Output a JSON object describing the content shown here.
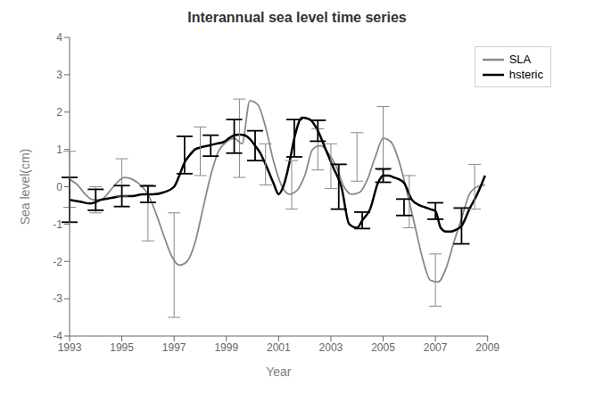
{
  "chart_data": {
    "type": "line",
    "title": "Interannual sea level time series",
    "x_label": "Year",
    "y_label": "Sea level(cm)",
    "xlim": [
      1993,
      2009
    ],
    "ylim": [
      -4,
      4
    ],
    "xticks": [
      1993,
      1995,
      1997,
      1999,
      2001,
      2003,
      2005,
      2007,
      2009
    ],
    "yticks": [
      -4,
      -3,
      -2,
      -1,
      0,
      1,
      2,
      3,
      4
    ],
    "grid": false,
    "legend": "upper right",
    "series": [
      {
        "name": "SLA",
        "color": "#888888",
        "x": [
          1993.0,
          1993.3,
          1993.6,
          1993.9,
          1994.2,
          1994.5,
          1994.8,
          1995.1,
          1995.4,
          1995.7,
          1996.0,
          1996.3,
          1996.6,
          1996.9,
          1997.2,
          1997.5,
          1997.8,
          1998.1,
          1998.4,
          1998.7,
          1999.0,
          1999.3,
          1999.6,
          1999.9,
          2000.2,
          2000.5,
          2000.8,
          2001.1,
          2001.4,
          2001.7,
          2002.0,
          2002.3,
          2002.6,
          2002.9,
          2003.2,
          2003.5,
          2003.8,
          2004.1,
          2004.4,
          2004.7,
          2005.0,
          2005.3,
          2005.6,
          2005.9,
          2006.2,
          2006.5,
          2006.8,
          2007.1,
          2007.4,
          2007.7,
          2008.0,
          2008.3,
          2008.6,
          2008.9
        ],
        "values": [
          0.2,
          0.05,
          -0.2,
          -0.35,
          -0.35,
          -0.15,
          0.1,
          0.25,
          0.2,
          0.05,
          -0.2,
          -0.7,
          -1.3,
          -1.85,
          -2.1,
          -2.0,
          -1.5,
          -0.6,
          0.3,
          0.95,
          1.2,
          1.3,
          1.15,
          2.3,
          2.2,
          1.6,
          0.7,
          0.05,
          -0.2,
          -0.1,
          0.3,
          1.0,
          1.1,
          0.9,
          0.55,
          0.0,
          -0.2,
          -0.15,
          0.2,
          0.8,
          1.3,
          1.2,
          0.7,
          -0.1,
          -1.0,
          -1.9,
          -2.5,
          -2.55,
          -2.2,
          -1.5,
          -0.85,
          -0.2,
          0.0,
          0.05
        ],
        "error_bars": {
          "x": [
            1993.0,
            1994.0,
            1995.0,
            1996.0,
            1997.0,
            1998.0,
            1999.5,
            2000.5,
            2001.5,
            2002.5,
            2003.0,
            2004.0,
            2005.0,
            2006.0,
            2007.0,
            2008.5
          ],
          "values": [
            0.2,
            -0.35,
            0.25,
            -0.7,
            -2.1,
            0.95,
            1.3,
            0.6,
            0.05,
            1.0,
            0.55,
            0.8,
            1.3,
            -0.4,
            -2.5,
            0.0
          ],
          "errors": [
            0.75,
            0.35,
            0.5,
            0.75,
            1.4,
            0.65,
            1.05,
            0.55,
            0.65,
            0.55,
            0.6,
            0.65,
            0.85,
            0.7,
            0.7,
            0.6
          ]
        }
      },
      {
        "name": "hsteric",
        "color": "#000000",
        "x": [
          1993.0,
          1993.4,
          1993.8,
          1994.2,
          1994.6,
          1995.0,
          1995.4,
          1995.8,
          1996.2,
          1996.6,
          1997.0,
          1997.2,
          1997.4,
          1997.6,
          1997.8,
          1998.0,
          1998.3,
          1998.6,
          1998.9,
          1999.1,
          1999.3,
          1999.5,
          1999.7,
          1999.9,
          2000.1,
          2000.3,
          2000.5,
          2000.8,
          2001.0,
          2001.2,
          2001.4,
          2001.6,
          2001.9,
          2002.2,
          2002.5,
          2002.8,
          2003.1,
          2003.4,
          2003.7,
          2004.0,
          2004.2,
          2004.5,
          2004.8,
          2005.0,
          2005.2,
          2005.4,
          2005.6,
          2005.8,
          2006.1,
          2006.4,
          2006.6,
          2006.8,
          2007.0,
          2007.2,
          2007.4,
          2007.6,
          2007.8,
          2008.0,
          2008.3,
          2008.6,
          2008.9
        ],
        "values": [
          -0.35,
          -0.4,
          -0.45,
          -0.35,
          -0.3,
          -0.25,
          -0.25,
          -0.2,
          -0.2,
          -0.15,
          0.0,
          0.3,
          0.65,
          0.85,
          1.0,
          1.05,
          1.1,
          1.15,
          1.2,
          1.3,
          1.38,
          1.4,
          1.38,
          1.28,
          1.1,
          0.9,
          0.6,
          0.1,
          -0.2,
          0.05,
          0.6,
          1.3,
          1.85,
          1.8,
          1.5,
          1.0,
          0.5,
          0.0,
          -1.0,
          -1.1,
          -0.9,
          -0.6,
          0.1,
          0.3,
          0.3,
          0.25,
          0.2,
          0.1,
          -0.35,
          -0.5,
          -0.55,
          -0.6,
          -0.65,
          -1.1,
          -1.2,
          -1.2,
          -1.15,
          -1.05,
          -0.6,
          -0.2,
          0.3
        ],
        "error_bars": {
          "x": [
            1993.0,
            1994.0,
            1995.0,
            1996.0,
            1997.4,
            1998.4,
            1999.3,
            2000.1,
            2001.6,
            2002.5,
            2003.3,
            2004.2,
            2005.0,
            2005.8,
            2007.0,
            2008.0
          ],
          "values": [
            -0.35,
            -0.35,
            -0.25,
            -0.2,
            0.85,
            1.1,
            1.35,
            1.1,
            1.3,
            1.5,
            0.0,
            -0.9,
            0.3,
            -0.55,
            -0.65,
            -1.05
          ],
          "errors": [
            0.6,
            0.28,
            0.28,
            0.22,
            0.5,
            0.28,
            0.45,
            0.4,
            0.5,
            0.28,
            0.6,
            0.22,
            0.18,
            0.22,
            0.22,
            0.48
          ]
        }
      }
    ]
  }
}
